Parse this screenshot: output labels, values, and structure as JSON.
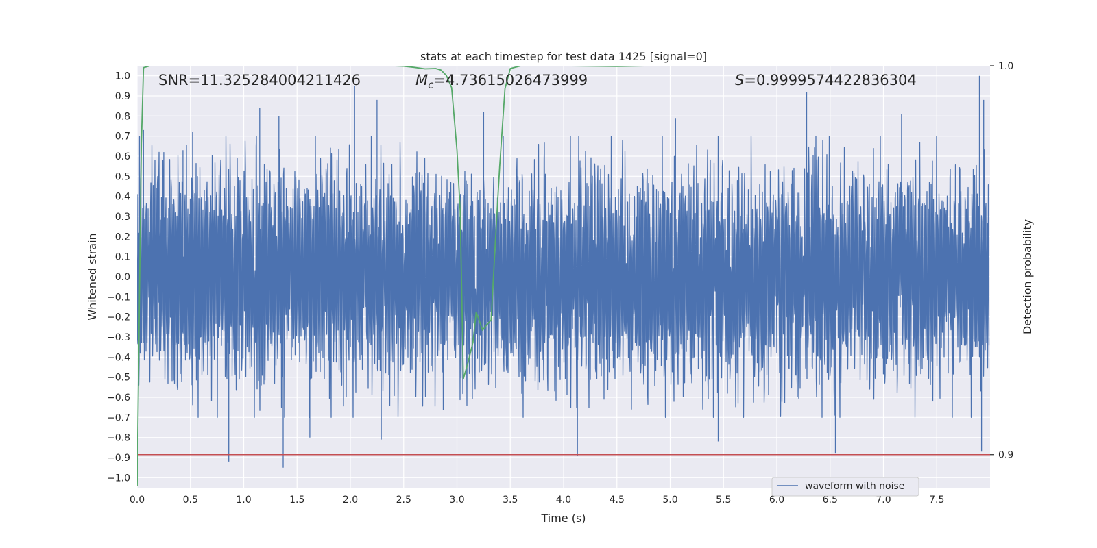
{
  "chart_data": {
    "type": "line",
    "title": "stats at each timestep for test data 1425 [signal=0]",
    "xlabel": "Time (s)",
    "ylabel": "Whitened strain",
    "y2label": "Detection probability",
    "xlim": [
      0.0,
      8.0
    ],
    "ylim": [
      -1.05,
      1.05
    ],
    "y2lim": [
      0.8915,
      1.0
    ],
    "x_ticks": [
      "0.0",
      "0.5",
      "1.0",
      "1.5",
      "2.0",
      "2.5",
      "3.0",
      "3.5",
      "4.0",
      "4.5",
      "5.0",
      "5.5",
      "6.0",
      "6.5",
      "7.0",
      "7.5"
    ],
    "y_ticks": [
      "1.0",
      "0.9",
      "0.8",
      "0.7",
      "0.6",
      "0.5",
      "0.4",
      "0.3",
      "0.2",
      "0.1",
      "0.0",
      "−0.1",
      "−0.2",
      "−0.3",
      "−0.4",
      "−0.5",
      "−0.6",
      "−0.7",
      "−0.8",
      "−0.9",
      "−1.0"
    ],
    "y2_ticks": [
      "1.0",
      "0.9"
    ],
    "annotations": {
      "snr": "SNR=11.325284004211426",
      "mc_symbol": "M",
      "mc_sub": "c",
      "mc_value": "=4.73615026473999",
      "s_symbol": "S",
      "s_value": "=0.9999574422836304"
    },
    "grid": true,
    "legend": {
      "placement": "lower-right-center",
      "entries": [
        "waveform with noise"
      ]
    },
    "series": [
      {
        "name": "waveform with noise",
        "color": "#4c72b0",
        "axis": "left",
        "kind": "noise",
        "sample_rate_hz": 2048,
        "duration_s": 8.0,
        "x_range": [
          0.0,
          7.99
        ],
        "typical_amplitude": 0.45,
        "peaks": [
          {
            "x": 0.06,
            "y": 0.73
          },
          {
            "x": 0.25,
            "y": 0.62
          },
          {
            "x": 0.43,
            "y": 0.63
          },
          {
            "x": 0.52,
            "y": 0.72
          },
          {
            "x": 0.86,
            "y": -0.92
          },
          {
            "x": 1.15,
            "y": 0.84
          },
          {
            "x": 1.33,
            "y": 0.8
          },
          {
            "x": 1.37,
            "y": -0.95
          },
          {
            "x": 1.62,
            "y": -0.8
          },
          {
            "x": 2.04,
            "y": 0.95
          },
          {
            "x": 2.25,
            "y": 0.88
          },
          {
            "x": 2.29,
            "y": -0.81
          },
          {
            "x": 3.25,
            "y": 0.82
          },
          {
            "x": 4.13,
            "y": -0.89
          },
          {
            "x": 5.05,
            "y": 0.79
          },
          {
            "x": 5.45,
            "y": -0.82
          },
          {
            "x": 6.28,
            "y": 0.92
          },
          {
            "x": 6.55,
            "y": -0.88
          },
          {
            "x": 7.17,
            "y": 0.81
          },
          {
            "x": 7.9,
            "y": 1.0
          },
          {
            "x": 7.94,
            "y": 0.88
          },
          {
            "x": 7.92,
            "y": -0.87
          }
        ]
      },
      {
        "name": "",
        "color": "#55a868",
        "axis": "right",
        "kind": "line",
        "points": [
          [
            0.0,
            0.892
          ],
          [
            0.04,
            0.98
          ],
          [
            0.06,
            0.9995
          ],
          [
            0.12,
            1.0
          ],
          [
            0.5,
            1.0
          ],
          [
            1.0,
            1.0
          ],
          [
            1.5,
            1.0
          ],
          [
            2.0,
            1.0
          ],
          [
            2.4,
            1.0
          ],
          [
            2.5,
            0.9999
          ],
          [
            2.6,
            0.9996
          ],
          [
            2.7,
            0.9992
          ],
          [
            2.8,
            0.9993
          ],
          [
            2.85,
            0.9989
          ],
          [
            2.9,
            0.9975
          ],
          [
            2.95,
            0.9944
          ],
          [
            3.0,
            0.9783
          ],
          [
            3.03,
            0.9626
          ],
          [
            3.06,
            0.9195
          ],
          [
            3.1,
            0.9233
          ],
          [
            3.15,
            0.9289
          ],
          [
            3.18,
            0.9366
          ],
          [
            3.2,
            0.9352
          ],
          [
            3.24,
            0.932
          ],
          [
            3.28,
            0.9334
          ],
          [
            3.32,
            0.9346
          ],
          [
            3.36,
            0.9548
          ],
          [
            3.4,
            0.9739
          ],
          [
            3.45,
            0.9941
          ],
          [
            3.5,
            0.9993
          ],
          [
            3.6,
            1.0
          ],
          [
            4.0,
            1.0
          ],
          [
            4.5,
            0.99985
          ],
          [
            4.8,
            1.0
          ],
          [
            5.5,
            1.0
          ],
          [
            6.0,
            1.0
          ],
          [
            6.5,
            1.0
          ],
          [
            7.0,
            1.0
          ],
          [
            7.5,
            1.0
          ],
          [
            7.98,
            1.0
          ]
        ]
      },
      {
        "name": "",
        "color": "#c44e52",
        "axis": "right",
        "kind": "hline",
        "y": 0.9
      }
    ]
  }
}
